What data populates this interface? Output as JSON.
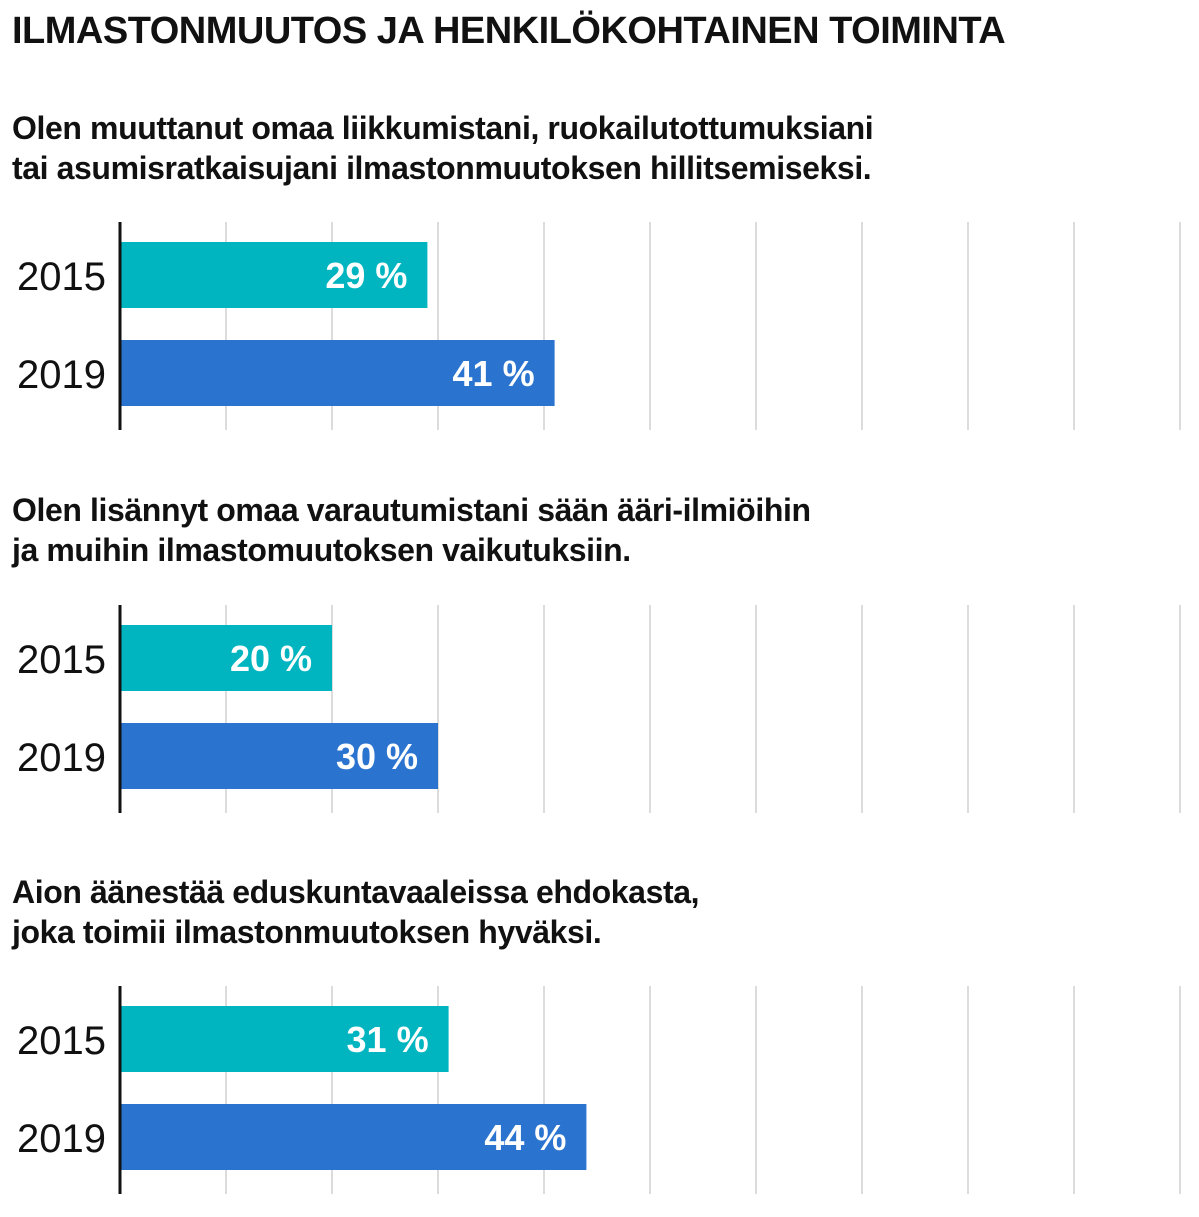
{
  "title": "ILMASTONMUUTOS JA HENKILÖKOHTAINEN TOIMINTA",
  "colors": {
    "bar_2015": "#00b5c0",
    "bar_2019": "#2a74d0",
    "grid": "#d0d0d0",
    "axis": "#111111",
    "label_text": "#ffffff"
  },
  "chart_data": [
    {
      "type": "bar",
      "orientation": "horizontal",
      "title_lines": [
        "Olen muuttanut omaa liikkumistani, ruokailutottumuksiani",
        "tai asumisratkaisujani ilmastonmuutoksen hillitsemiseksi."
      ],
      "categories": [
        "2015",
        "2019"
      ],
      "values": [
        29,
        41
      ],
      "data_labels": [
        "29 %",
        "41 %"
      ],
      "xlim": [
        0,
        100
      ],
      "grid": true
    },
    {
      "type": "bar",
      "orientation": "horizontal",
      "title_lines": [
        "Olen lisännyt omaa varautumistani sään ääri-ilmiöihin",
        "ja muihin ilmastomuutoksen vaikutuksiin."
      ],
      "categories": [
        "2015",
        "2019"
      ],
      "values": [
        20,
        30
      ],
      "data_labels": [
        "20 %",
        "30 %"
      ],
      "xlim": [
        0,
        100
      ],
      "grid": true
    },
    {
      "type": "bar",
      "orientation": "horizontal",
      "title_lines": [
        "Aion äänestää eduskuntavaaleissa ehdokasta,",
        "joka toimii ilmastonmuutoksen hyväksi."
      ],
      "categories": [
        "2015",
        "2019"
      ],
      "values": [
        31,
        44
      ],
      "data_labels": [
        "31 %",
        "44 %"
      ],
      "xlim": [
        0,
        100
      ],
      "grid": true
    }
  ]
}
